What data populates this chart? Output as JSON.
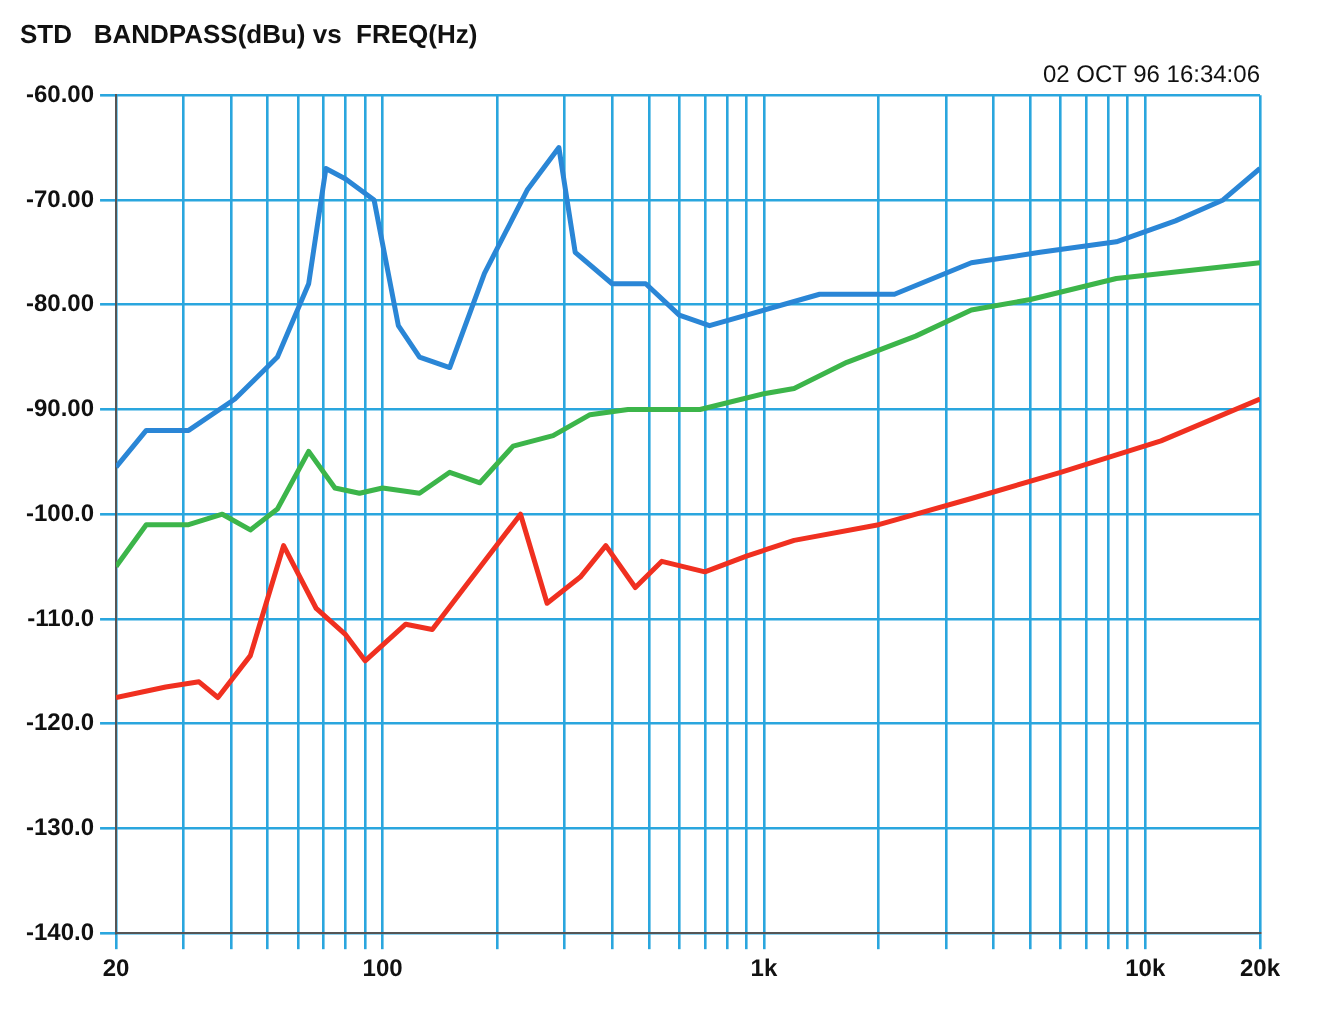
{
  "chart_data": {
    "type": "line",
    "title": "STD   BANDPASS(dBu) vs  FREQ(Hz)",
    "annotations": [
      "02 OCT 96 16:34:06"
    ],
    "log": "x",
    "grid": true,
    "marker": "none",
    "line_style": "solid",
    "xlim": [
      20,
      20000
    ],
    "ylim": [
      -140,
      -60
    ],
    "xticks": [
      {
        "value": 20,
        "label": "20"
      },
      {
        "value": 30,
        "label": null
      },
      {
        "value": 40,
        "label": null
      },
      {
        "value": 50,
        "label": null
      },
      {
        "value": 60,
        "label": null
      },
      {
        "value": 70,
        "label": null
      },
      {
        "value": 80,
        "label": null
      },
      {
        "value": 90,
        "label": null
      },
      {
        "value": 100,
        "label": "100"
      },
      {
        "value": 200,
        "label": null
      },
      {
        "value": 300,
        "label": null
      },
      {
        "value": 400,
        "label": null
      },
      {
        "value": 500,
        "label": null
      },
      {
        "value": 600,
        "label": null
      },
      {
        "value": 700,
        "label": null
      },
      {
        "value": 800,
        "label": null
      },
      {
        "value": 900,
        "label": null
      },
      {
        "value": 1000,
        "label": "1k"
      },
      {
        "value": 2000,
        "label": null
      },
      {
        "value": 3000,
        "label": null
      },
      {
        "value": 4000,
        "label": null
      },
      {
        "value": 5000,
        "label": null
      },
      {
        "value": 6000,
        "label": null
      },
      {
        "value": 7000,
        "label": null
      },
      {
        "value": 8000,
        "label": null
      },
      {
        "value": 9000,
        "label": null
      },
      {
        "value": 10000,
        "label": "10k"
      },
      {
        "value": 20000,
        "label": "20k"
      }
    ],
    "yticks": [
      {
        "value": -60,
        "label": "-60.00"
      },
      {
        "value": -70,
        "label": "-70.00"
      },
      {
        "value": -80,
        "label": "-80.00"
      },
      {
        "value": -90,
        "label": "-90.00"
      },
      {
        "value": -100,
        "label": "-100.0"
      },
      {
        "value": -110,
        "label": "-110.0"
      },
      {
        "value": -120,
        "label": "-120.0"
      },
      {
        "value": -130,
        "label": "-130.0"
      },
      {
        "value": -140,
        "label": "-140.0"
      }
    ],
    "series": [
      {
        "color": "#2a86d6",
        "x": [
          20,
          24,
          31,
          41,
          53,
          64,
          71,
          80,
          95,
          110,
          125,
          150,
          185,
          240,
          290,
          320,
          400,
          490,
          600,
          720,
          900,
          1400,
          2200,
          3500,
          5300,
          8400,
          12000,
          16000,
          20000
        ],
        "values": [
          -95.5,
          -92,
          -92,
          -89,
          -85,
          -78,
          -67,
          -68,
          -70,
          -82,
          -85,
          -86,
          -77,
          -69,
          -65,
          -75,
          -78,
          -78,
          -81,
          -82,
          -81,
          -79,
          -79,
          -76,
          -75,
          -74,
          -72,
          -70,
          -67
        ]
      },
      {
        "color": "#3cb54a",
        "x": [
          20,
          24,
          31,
          38,
          45,
          53,
          64,
          75,
          87,
          100,
          125,
          150,
          180,
          220,
          280,
          350,
          440,
          550,
          680,
          1000,
          1200,
          1650,
          2500,
          3500,
          5000,
          8400,
          20000
        ],
        "values": [
          -105,
          -101,
          -101,
          -100,
          -101.5,
          -99.5,
          -94,
          -97.5,
          -98,
          -97.5,
          -98,
          -96,
          -97,
          -93.5,
          -92.5,
          -90.5,
          -90,
          -90,
          -90,
          -88.5,
          -88,
          -85.5,
          -83,
          -80.5,
          -79.5,
          -77.5,
          -76
        ]
      },
      {
        "color": "#f03020",
        "x": [
          20,
          27,
          33,
          37,
          45,
          55,
          67,
          80,
          90,
          115,
          135,
          230,
          270,
          330,
          385,
          460,
          540,
          700,
          900,
          1200,
          2000,
          3500,
          6000,
          11000,
          20000
        ],
        "values": [
          -117.5,
          -116.5,
          -116,
          -117.5,
          -113.5,
          -103,
          -109,
          -111.5,
          -114,
          -110.5,
          -111,
          -100,
          -108.5,
          -106,
          -103,
          -107,
          -104.5,
          -105.5,
          -104,
          -102.5,
          -101,
          -98.5,
          -96,
          -93,
          -89
        ]
      }
    ]
  }
}
